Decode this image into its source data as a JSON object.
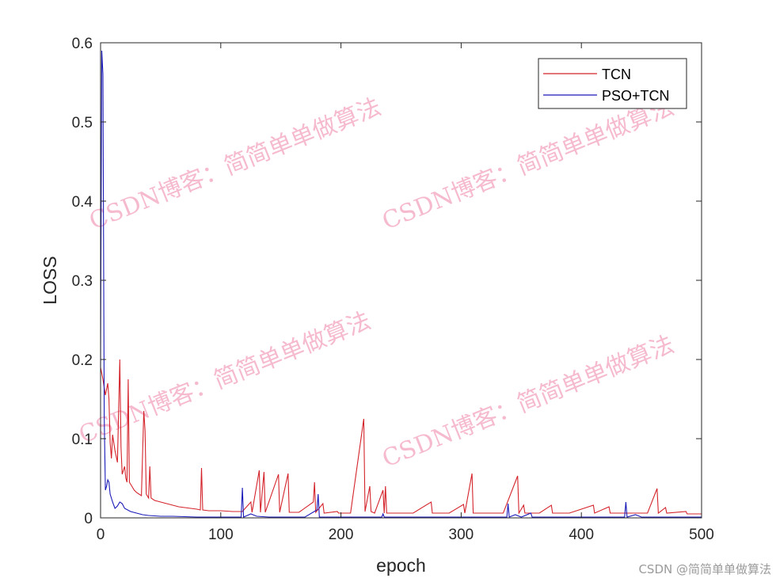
{
  "chart_data": {
    "type": "line",
    "xlabel": "epoch",
    "ylabel": "LOSS",
    "xlim": [
      0,
      500
    ],
    "ylim": [
      0,
      0.6
    ],
    "xticks": [
      "0",
      "100",
      "200",
      "300",
      "400",
      "500"
    ],
    "yticks": [
      "0",
      "0.1",
      "0.2",
      "0.3",
      "0.4",
      "0.5",
      "0.6"
    ],
    "grid": false,
    "legend_position": "top-right",
    "series": [
      {
        "name": "TCN",
        "color": "#d4242b",
        "points": [
          [
            0,
            0.19
          ],
          [
            2,
            0.175
          ],
          [
            4,
            0.155
          ],
          [
            6,
            0.17
          ],
          [
            7,
            0.15
          ],
          [
            8,
            0.095
          ],
          [
            9,
            0.075
          ],
          [
            10,
            0.105
          ],
          [
            12,
            0.085
          ],
          [
            14,
            0.07
          ],
          [
            16,
            0.2
          ],
          [
            17,
            0.09
          ],
          [
            18,
            0.055
          ],
          [
            20,
            0.065
          ],
          [
            21,
            0.05
          ],
          [
            22,
            0.045
          ],
          [
            23,
            0.175
          ],
          [
            24,
            0.045
          ],
          [
            26,
            0.04
          ],
          [
            28,
            0.035
          ],
          [
            30,
            0.032
          ],
          [
            32,
            0.03
          ],
          [
            34,
            0.028
          ],
          [
            36,
            0.135
          ],
          [
            37,
            0.11
          ],
          [
            38,
            0.03
          ],
          [
            40,
            0.025
          ],
          [
            41,
            0.065
          ],
          [
            42,
            0.025
          ],
          [
            45,
            0.022
          ],
          [
            50,
            0.02
          ],
          [
            55,
            0.018
          ],
          [
            60,
            0.016
          ],
          [
            65,
            0.014
          ],
          [
            70,
            0.013
          ],
          [
            75,
            0.012
          ],
          [
            80,
            0.011
          ],
          [
            83,
            0.01
          ],
          [
            84,
            0.063
          ],
          [
            85,
            0.01
          ],
          [
            90,
            0.009
          ],
          [
            100,
            0.009
          ],
          [
            110,
            0.008
          ],
          [
            118,
            0.008
          ],
          [
            125,
            0.02
          ],
          [
            126,
            0.007
          ],
          [
            132,
            0.06
          ],
          [
            133,
            0.007
          ],
          [
            136,
            0.058
          ],
          [
            137,
            0.007
          ],
          [
            148,
            0.055
          ],
          [
            149,
            0.007
          ],
          [
            156,
            0.056
          ],
          [
            157,
            0.007
          ],
          [
            165,
            0.007
          ],
          [
            177,
            0.02
          ],
          [
            178,
            0.045
          ],
          [
            179,
            0.007
          ],
          [
            185,
            0.018
          ],
          [
            186,
            0.006
          ],
          [
            197,
            0.008
          ],
          [
            198,
            0.006
          ],
          [
            208,
            0.006
          ],
          [
            219,
            0.125
          ],
          [
            220,
            0.008
          ],
          [
            224,
            0.04
          ],
          [
            225,
            0.008
          ],
          [
            228,
            0.006
          ],
          [
            235,
            0.035
          ],
          [
            236,
            0.006
          ],
          [
            237,
            0.04
          ],
          [
            238,
            0.006
          ],
          [
            250,
            0.006
          ],
          [
            260,
            0.006
          ],
          [
            275,
            0.02
          ],
          [
            276,
            0.006
          ],
          [
            290,
            0.006
          ],
          [
            302,
            0.017
          ],
          [
            303,
            0.006
          ],
          [
            309,
            0.056
          ],
          [
            310,
            0.006
          ],
          [
            320,
            0.006
          ],
          [
            335,
            0.006
          ],
          [
            347,
            0.053
          ],
          [
            348,
            0.006
          ],
          [
            352,
            0.016
          ],
          [
            353,
            0.006
          ],
          [
            365,
            0.006
          ],
          [
            375,
            0.016
          ],
          [
            376,
            0.006
          ],
          [
            390,
            0.006
          ],
          [
            410,
            0.016
          ],
          [
            411,
            0.006
          ],
          [
            423,
            0.014
          ],
          [
            424,
            0.006
          ],
          [
            440,
            0.006
          ],
          [
            455,
            0.006
          ],
          [
            463,
            0.037
          ],
          [
            464,
            0.006
          ],
          [
            470,
            0.013
          ],
          [
            471,
            0.006
          ],
          [
            487,
            0.008
          ],
          [
            488,
            0.005
          ],
          [
            500,
            0.005
          ]
        ]
      },
      {
        "name": "PSO+TCN",
        "color": "#1a1ab8",
        "points": [
          [
            0,
            0.19
          ],
          [
            1,
            0.59
          ],
          [
            2,
            0.56
          ],
          [
            3,
            0.13
          ],
          [
            4,
            0.035
          ],
          [
            5,
            0.04
          ],
          [
            6,
            0.048
          ],
          [
            7,
            0.045
          ],
          [
            8,
            0.03
          ],
          [
            10,
            0.02
          ],
          [
            12,
            0.012
          ],
          [
            14,
            0.015
          ],
          [
            16,
            0.02
          ],
          [
            18,
            0.018
          ],
          [
            20,
            0.012
          ],
          [
            25,
            0.008
          ],
          [
            30,
            0.006
          ],
          [
            35,
            0.004
          ],
          [
            40,
            0.003
          ],
          [
            50,
            0.002
          ],
          [
            60,
            0.002
          ],
          [
            80,
            0.001
          ],
          [
            100,
            0.001
          ],
          [
            117,
            0.001
          ],
          [
            118,
            0.038
          ],
          [
            119,
            0.001
          ],
          [
            125,
            0.005
          ],
          [
            130,
            0.002
          ],
          [
            140,
            0.001
          ],
          [
            170,
            0.001
          ],
          [
            180,
            0.01
          ],
          [
            181,
            0.03
          ],
          [
            182,
            0.001
          ],
          [
            200,
            0.001
          ],
          [
            234,
            0.001
          ],
          [
            235,
            0.005
          ],
          [
            236,
            0.001
          ],
          [
            300,
            0.001
          ],
          [
            338,
            0.001
          ],
          [
            339,
            0.018
          ],
          [
            340,
            0.001
          ],
          [
            345,
            0.004
          ],
          [
            350,
            0.001
          ],
          [
            358,
            0.006
          ],
          [
            359,
            0.001
          ],
          [
            400,
            0.001
          ],
          [
            436,
            0.001
          ],
          [
            437,
            0.02
          ],
          [
            438,
            0.001
          ],
          [
            445,
            0.004
          ],
          [
            450,
            0.001
          ],
          [
            500,
            0.001
          ]
        ]
      }
    ]
  },
  "watermark_text": "CSDN博客：简简单单做算法",
  "credit_text": "CSDN @简简单单做算法"
}
